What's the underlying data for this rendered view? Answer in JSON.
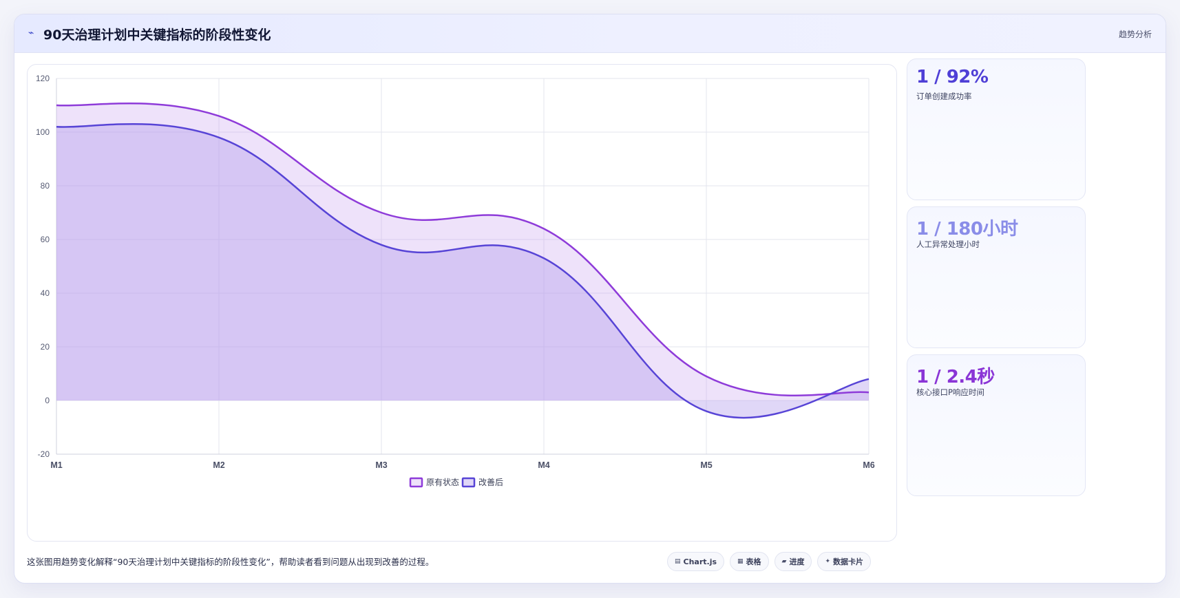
{
  "header": {
    "icon": "sparkline-icon",
    "title": "90天治理计划中关键指标的阶段性变化",
    "tag": "趋势分析"
  },
  "kpis": [
    {
      "value": "1 / 92%",
      "label": "订单创建成功率",
      "color": "#4f3fd6"
    },
    {
      "value": "1 / 180小时",
      "label": "人工异常处理小时",
      "color": "#8a8de8"
    },
    {
      "value": "1 / 2.4秒",
      "label": "核心接口P响应时间",
      "color": "#8a35d6"
    }
  ],
  "footer": {
    "note": "这张图用趋势变化解释“90天治理计划中关键指标的阶段性变化”，帮助读者看到问题从出现到改善的过程。",
    "chips": [
      {
        "icon": "chart-icon",
        "glyph": "▤",
        "label": "Chart.js"
      },
      {
        "icon": "table-icon",
        "glyph": "▦",
        "label": "表格"
      },
      {
        "icon": "progress-icon",
        "glyph": "▰",
        "label": "进度"
      },
      {
        "icon": "card-icon",
        "glyph": "✦",
        "label": "数据卡片"
      }
    ]
  },
  "chart_data": {
    "type": "area",
    "categories": [
      "M1",
      "M2",
      "M3",
      "M4",
      "M5",
      "M6"
    ],
    "series": [
      {
        "name": "原有状态",
        "values": [
          110,
          106,
          70,
          64,
          9,
          3
        ],
        "color": "#8e3bd9",
        "fill": "rgba(200,160,240,0.30)"
      },
      {
        "name": "改善后",
        "values": [
          102,
          98,
          58,
          53,
          -4,
          8
        ],
        "color": "#5744d6",
        "fill": "rgba(180,160,235,0.42)"
      }
    ],
    "ylim": [
      -20,
      120
    ],
    "yticks": [
      120,
      100,
      80,
      60,
      40,
      20,
      0,
      -20
    ],
    "grid": true,
    "legend": "bottom",
    "title": "",
    "xlabel": "",
    "ylabel": ""
  }
}
